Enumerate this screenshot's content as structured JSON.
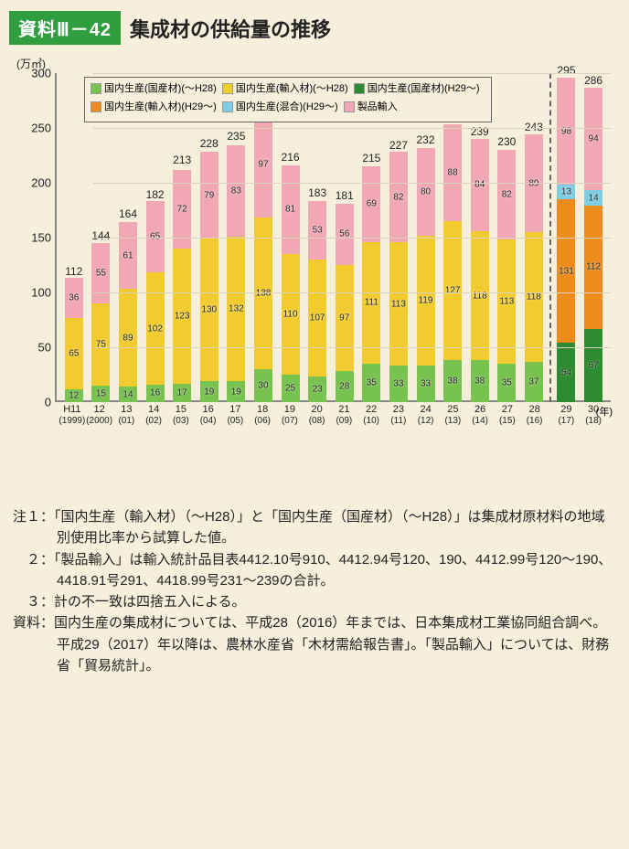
{
  "header": {
    "badge": "資料Ⅲ－42",
    "title": "集成材の供給量の推移"
  },
  "chart": {
    "type": "stacked-bar",
    "y_unit": "(万㎥)",
    "x_unit": "(年)",
    "ylim": [
      0,
      300
    ],
    "ytick_step": 50,
    "background_color": "#f5efdb",
    "grid_color": "#d9d3bf",
    "axis_color": "#888888",
    "series_colors": {
      "dom_dom_old": "#78c250",
      "dom_imp_old": "#f2cc2e",
      "dom_dom_new": "#2c8a30",
      "dom_imp_new": "#ed8c1a",
      "dom_mix_new": "#7fcde4",
      "prod_import": "#f2a8b4"
    },
    "legend_labels": {
      "dom_dom_old": "国内生産(国産材)(～H28)",
      "dom_imp_old": "国内生産(輸入材)(～H28)",
      "dom_dom_new": "国内生産(国産材)(H29～)",
      "dom_imp_new": "国内生産(輸入材)(H29～)",
      "dom_mix_new": "国内生産(混合)(H29～)",
      "prod_import": "製品輸入"
    },
    "legend_order": [
      "dom_dom_old",
      "dom_imp_old",
      "dom_dom_new",
      "dom_imp_new",
      "dom_mix_new",
      "prod_import"
    ],
    "separator_after_index": 19,
    "bars": [
      {
        "x1": "H11",
        "x2": "(1999)",
        "total": 112,
        "segs": [
          [
            "dom_dom_old",
            12
          ],
          [
            "dom_imp_old",
            65
          ],
          [
            "prod_import",
            36
          ]
        ]
      },
      {
        "x1": "12",
        "x2": "(2000)",
        "total": 144,
        "segs": [
          [
            "dom_dom_old",
            15
          ],
          [
            "dom_imp_old",
            75
          ],
          [
            "prod_import",
            55
          ]
        ]
      },
      {
        "x1": "13",
        "x2": "(01)",
        "total": 164,
        "segs": [
          [
            "dom_dom_old",
            14
          ],
          [
            "dom_imp_old",
            89
          ],
          [
            "prod_import",
            61
          ]
        ]
      },
      {
        "x1": "14",
        "x2": "(02)",
        "total": 182,
        "segs": [
          [
            "dom_dom_old",
            16
          ],
          [
            "dom_imp_old",
            102
          ],
          [
            "prod_import",
            65
          ]
        ]
      },
      {
        "x1": "15",
        "x2": "(03)",
        "total": 213,
        "segs": [
          [
            "dom_dom_old",
            17
          ],
          [
            "dom_imp_old",
            123
          ],
          [
            "prod_import",
            72
          ]
        ]
      },
      {
        "x1": "16",
        "x2": "(04)",
        "total": 228,
        "segs": [
          [
            "dom_dom_old",
            19
          ],
          [
            "dom_imp_old",
            130
          ],
          [
            "prod_import",
            79
          ]
        ]
      },
      {
        "x1": "17",
        "x2": "(05)",
        "total": 235,
        "segs": [
          [
            "dom_dom_old",
            19
          ],
          [
            "dom_imp_old",
            132
          ],
          [
            "prod_import",
            83
          ]
        ]
      },
      {
        "x1": "18",
        "x2": "(06)",
        "total": 265,
        "segs": [
          [
            "dom_dom_old",
            30
          ],
          [
            "dom_imp_old",
            138
          ],
          [
            "prod_import",
            97
          ]
        ]
      },
      {
        "x1": "19",
        "x2": "(07)",
        "total": 216,
        "segs": [
          [
            "dom_dom_old",
            25
          ],
          [
            "dom_imp_old",
            110
          ],
          [
            "prod_import",
            81
          ]
        ]
      },
      {
        "x1": "20",
        "x2": "(08)",
        "total": 183,
        "segs": [
          [
            "dom_dom_old",
            23
          ],
          [
            "dom_imp_old",
            107
          ],
          [
            "prod_import",
            53
          ]
        ]
      },
      {
        "x1": "21",
        "x2": "(09)",
        "total": 181,
        "segs": [
          [
            "dom_dom_old",
            28
          ],
          [
            "dom_imp_old",
            97
          ],
          [
            "prod_import",
            56
          ]
        ]
      },
      {
        "x1": "22",
        "x2": "(10)",
        "total": 215,
        "segs": [
          [
            "dom_dom_old",
            35
          ],
          [
            "dom_imp_old",
            111
          ],
          [
            "prod_import",
            69
          ]
        ]
      },
      {
        "x1": "23",
        "x2": "(11)",
        "total": 227,
        "segs": [
          [
            "dom_dom_old",
            33
          ],
          [
            "dom_imp_old",
            113
          ],
          [
            "prod_import",
            82
          ]
        ]
      },
      {
        "x1": "24",
        "x2": "(12)",
        "total": 232,
        "segs": [
          [
            "dom_dom_old",
            33
          ],
          [
            "dom_imp_old",
            119
          ],
          [
            "prod_import",
            80
          ]
        ]
      },
      {
        "x1": "25",
        "x2": "(13)",
        "total": 253,
        "segs": [
          [
            "dom_dom_old",
            38
          ],
          [
            "dom_imp_old",
            127
          ],
          [
            "prod_import",
            88
          ]
        ]
      },
      {
        "x1": "26",
        "x2": "(14)",
        "total": 239,
        "segs": [
          [
            "dom_dom_old",
            38
          ],
          [
            "dom_imp_old",
            118
          ],
          [
            "prod_import",
            84
          ]
        ]
      },
      {
        "x1": "27",
        "x2": "(15)",
        "total": 230,
        "segs": [
          [
            "dom_dom_old",
            35
          ],
          [
            "dom_imp_old",
            113
          ],
          [
            "prod_import",
            82
          ]
        ]
      },
      {
        "x1": "28",
        "x2": "(16)",
        "total": 243,
        "segs": [
          [
            "dom_dom_old",
            37
          ],
          [
            "dom_imp_old",
            118
          ],
          [
            "prod_import",
            89
          ]
        ]
      },
      {
        "x1": "29",
        "x2": "(17)",
        "total": 295,
        "segs": [
          [
            "dom_dom_new",
            54
          ],
          [
            "dom_imp_new",
            131
          ],
          [
            "dom_mix_new",
            13
          ],
          [
            "prod_import",
            98
          ]
        ]
      },
      {
        "x1": "30",
        "x2": "(18)",
        "total": 286,
        "segs": [
          [
            "dom_dom_new",
            67
          ],
          [
            "dom_imp_new",
            112
          ],
          [
            "dom_mix_new",
            14
          ],
          [
            "prod_import",
            94
          ]
        ]
      }
    ]
  },
  "notes": {
    "n1": "注１：「国内生産（輸入材）（～H28）」と「国内生産（国産材）（～H28）」は集成材原材料の地域別使用比率から試算した値。",
    "n2": "　２：「製品輸入」は輸入統計品目表4412.10号910、4412.94号120、190、4412.99号120～190、4418.91号291、4418.99号231～239の合計。",
    "n3": "　３：計の不一致は四捨五入による。",
    "n4": "資料：国内生産の集成材については、平成28（2016）年までは、日本集成材工業協同組合調べ。平成29（2017）年以降は、農林水産省「木材需給報告書」。「製品輸入」については、財務省「貿易統計」。"
  }
}
